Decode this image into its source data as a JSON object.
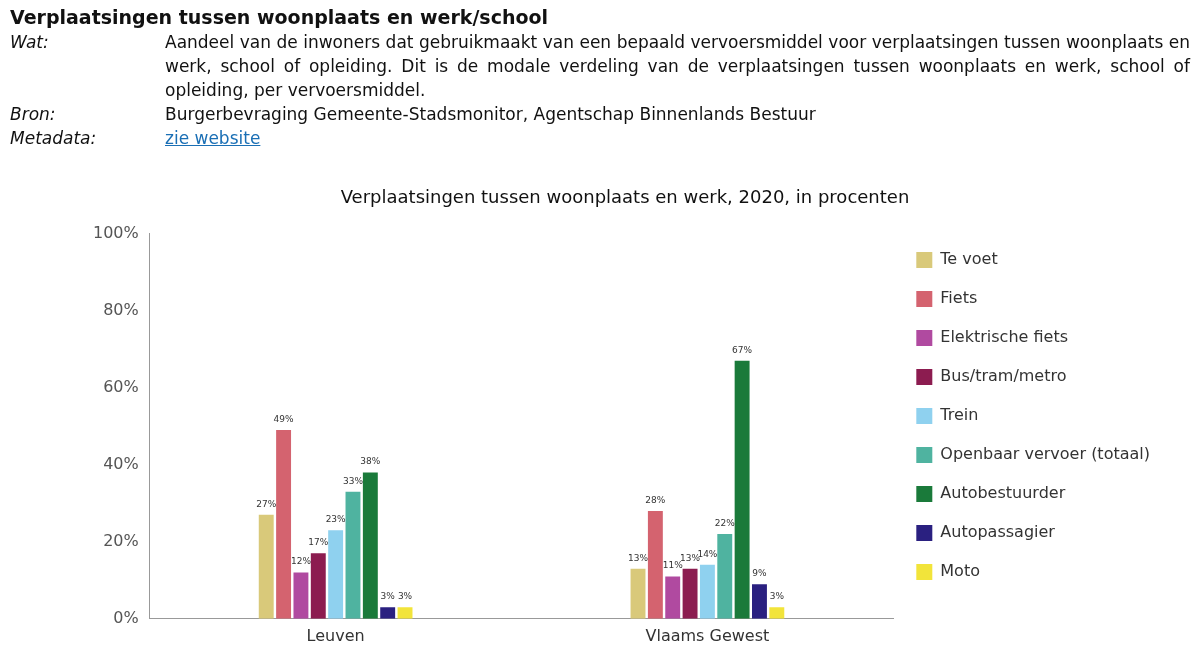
{
  "chart_data": {
    "type": "bar",
    "title": "Verplaatsingen tussen woonplaats en werk, 2020, in procenten",
    "annotations": [
      "Verplaatsingen tussen woonplaats en werk/school",
      "Wat:",
      "Aandeel van de inwoners dat gebruikmaakt van een bepaald vervoersmiddel voor verplaatsingen tussen woonplaats en werk, school of opleiding. Dit is de modale verdeling van de verplaatsingen tussen woonplaats en werk, school of opleiding, per vervoersmiddel.",
      "Bron:",
      "Burgerbevraging Gemeente-Stadsmonitor, Agentschap Binnenlands Bestuur",
      "Metadata:",
      "zie website"
    ],
    "categories": [
      "Leuven",
      "Vlaams Gewest"
    ],
    "series": [
      {
        "name": "Te voet",
        "color": "#d9c97a",
        "values": [
          27,
          13
        ],
        "value_labels": [
          "27%",
          "13%"
        ]
      },
      {
        "name": "Fiets",
        "color": "#d4636f",
        "values": [
          49,
          28
        ],
        "value_labels": [
          "49%",
          "28%"
        ]
      },
      {
        "name": "Elektrische fiets",
        "color": "#b04aa0",
        "values": [
          12,
          11
        ],
        "value_labels": [
          "12%",
          "11%"
        ]
      },
      {
        "name": "Bus/tram/metro",
        "color": "#8c1c50",
        "values": [
          17,
          13
        ],
        "value_labels": [
          "17%",
          "13%"
        ]
      },
      {
        "name": "Trein",
        "color": "#8fd1ef",
        "values": [
          23,
          14
        ],
        "value_labels": [
          "23%",
          "14%"
        ]
      },
      {
        "name": "Openbaar vervoer (totaal)",
        "color": "#4fb3a0",
        "values": [
          33,
          22
        ],
        "value_labels": [
          "33%",
          "22%"
        ]
      },
      {
        "name": "Autobestuurder",
        "color": "#1a7a3a",
        "values": [
          38,
          67
        ],
        "value_labels": [
          "38%",
          "67%"
        ]
      },
      {
        "name": "Autopassagier",
        "color": "#2a2080",
        "values": [
          3,
          9
        ],
        "value_labels": [
          "3%",
          "9%"
        ]
      },
      {
        "name": "Moto",
        "color": "#f2e43a",
        "values": [
          3,
          3
        ],
        "value_labels": [
          "3%",
          "3%"
        ]
      }
    ],
    "ylim": [
      0,
      100
    ],
    "yticks": [
      {
        "value": 0,
        "label": "0%"
      },
      {
        "value": 20,
        "label": "20%"
      },
      {
        "value": 40,
        "label": "40%"
      },
      {
        "value": 60,
        "label": "60%"
      },
      {
        "value": 80,
        "label": "80%"
      },
      {
        "value": 100,
        "label": "100%"
      }
    ],
    "grid": false,
    "legend": "right"
  }
}
